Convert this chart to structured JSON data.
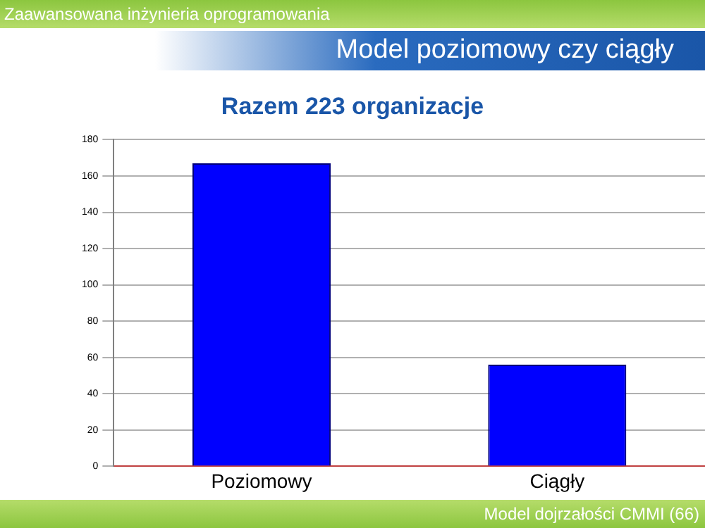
{
  "chart_data": {
    "type": "bar",
    "title": "Model poziomowy czy ciągły",
    "subtitle": "Razem 223 organizacje",
    "annotations": [
      "Zaawansowana inżynieria oprogramowania",
      "Model dojrzałości CMMI (66)"
    ],
    "categories": [
      "Poziomowy",
      "Ciągły"
    ],
    "values": [
      167,
      56
    ],
    "color": "#0000ff",
    "ylim": [
      0,
      180
    ],
    "yticks": [
      0,
      20,
      40,
      60,
      80,
      100,
      120,
      140,
      160,
      180
    ],
    "grid": "y"
  }
}
